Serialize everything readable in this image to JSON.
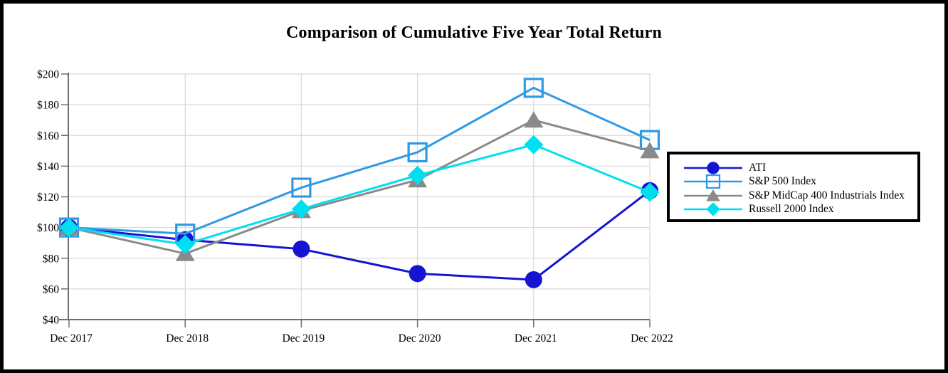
{
  "chart_data": {
    "type": "line",
    "title": "Comparison of Cumulative Five Year Total Return",
    "categories": [
      "Dec 2017",
      "Dec 2018",
      "Dec 2019",
      "Dec 2020",
      "Dec 2021",
      "Dec 2022"
    ],
    "xlabel": "",
    "ylabel": "",
    "ylim": [
      40,
      200
    ],
    "y_tick_step": 20,
    "grid": true,
    "legend_position": "right",
    "y_ticks": [
      {
        "label": "$40",
        "value": 40
      },
      {
        "label": "$60",
        "value": 60
      },
      {
        "label": "$80",
        "value": 80
      },
      {
        "label": "$100",
        "value": 100
      },
      {
        "label": "$120",
        "value": 120
      },
      {
        "label": "$140",
        "value": 140
      },
      {
        "label": "$160",
        "value": 160
      },
      {
        "label": "$180",
        "value": 180
      },
      {
        "label": "$200",
        "value": 200
      }
    ],
    "series": [
      {
        "name": "ATI",
        "marker": "circle",
        "color": "#1414D2",
        "values": [
          100,
          92,
          86,
          70,
          66,
          124
        ]
      },
      {
        "name": "S&P 500 Index",
        "marker": "open-square",
        "color": "#2E9AE6",
        "values": [
          100,
          96,
          126,
          149,
          191,
          157
        ]
      },
      {
        "name": "S&P MidCap 400 Industrials Index",
        "marker": "triangle",
        "color": "#8A8A8A",
        "values": [
          100,
          83,
          111,
          131,
          170,
          150
        ]
      },
      {
        "name": "Russell 2000 Index",
        "marker": "diamond",
        "color": "#00DFF0",
        "values": [
          100,
          89,
          112,
          134,
          154,
          123
        ]
      }
    ],
    "style_colors": {
      "axis": "#6E6E6E",
      "gridline": "#DADADA",
      "frame_border": "#000000",
      "text": "#000000"
    }
  }
}
